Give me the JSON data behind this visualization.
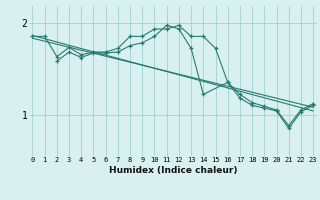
{
  "xlabel": "Humidex (Indice chaleur)",
  "background_color": "#d8f0f0",
  "grid_color": "#aad4d4",
  "line_color": "#267b6e",
  "x_ticks": [
    0,
    1,
    2,
    3,
    4,
    5,
    6,
    7,
    8,
    9,
    10,
    11,
    12,
    13,
    14,
    15,
    16,
    17,
    18,
    19,
    20,
    21,
    22,
    23
  ],
  "y_ticks": [
    1,
    2
  ],
  "ylim": [
    0.55,
    2.18
  ],
  "xlim": [
    -0.3,
    23.3
  ],
  "line1_x": [
    0,
    1,
    2,
    3,
    4,
    5,
    6,
    7,
    8,
    9,
    10,
    11,
    12,
    13,
    14,
    15,
    16,
    17,
    18,
    19,
    20,
    21,
    22,
    23
  ],
  "line1_y": [
    1.85,
    1.85,
    1.63,
    1.73,
    1.65,
    1.68,
    1.68,
    1.72,
    1.85,
    1.85,
    1.93,
    1.93,
    1.97,
    1.85,
    1.85,
    1.72,
    1.35,
    1.22,
    1.13,
    1.09,
    1.05,
    0.88,
    1.05,
    1.12
  ],
  "line2_x": [
    2,
    3,
    4,
    5,
    6,
    7,
    8,
    9,
    10,
    11,
    12,
    13,
    14,
    16,
    17,
    18,
    19,
    20,
    21,
    22,
    23
  ],
  "line2_y": [
    1.58,
    1.68,
    1.62,
    1.67,
    1.67,
    1.68,
    1.75,
    1.78,
    1.85,
    1.97,
    1.93,
    1.72,
    1.22,
    1.35,
    1.18,
    1.1,
    1.07,
    1.04,
    0.85,
    1.03,
    1.1
  ],
  "trend1_x": [
    0,
    23
  ],
  "trend1_y": [
    1.86,
    1.04
  ],
  "trend2_x": [
    0,
    23
  ],
  "trend2_y": [
    1.83,
    1.08
  ]
}
